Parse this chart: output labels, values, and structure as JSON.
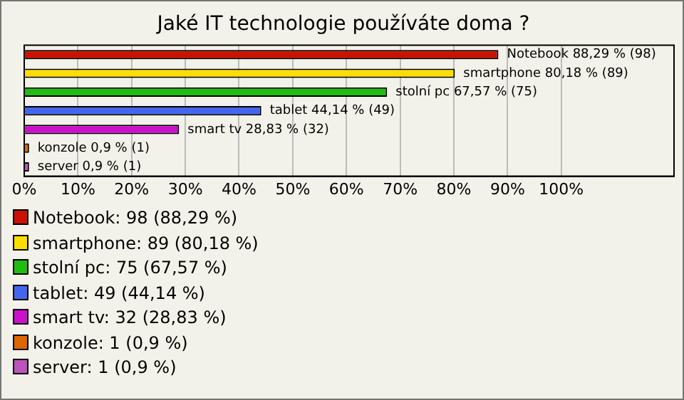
{
  "chart_data": {
    "type": "bar",
    "orientation": "horizontal",
    "stacked": true,
    "title": "Jaké IT technologie používáte doma ?",
    "categories": [
      null,
      null,
      null,
      null,
      null,
      null,
      null
    ],
    "series": [
      {
        "name": "Notebook: 98 (88,29 %)",
        "color": "#cc1100",
        "values": [
          88.29,
          null,
          null,
          null,
          null,
          null,
          null
        ],
        "value_labels": [
          "Notebook 88,29 % (98)",
          null,
          null,
          null,
          null,
          null,
          null
        ]
      },
      {
        "name": "smartphone: 89 (80,18 %)",
        "color": "#ffdd00",
        "values": [
          null,
          80.18,
          null,
          null,
          null,
          null,
          null
        ],
        "value_labels": [
          null,
          "smartphone 80,18 % (89)",
          null,
          null,
          null,
          null,
          null
        ]
      },
      {
        "name": "stolní pc: 75 (67,57 %)",
        "color": "#22bb11",
        "values": [
          null,
          null,
          67.57,
          null,
          null,
          null,
          null
        ],
        "value_labels": [
          null,
          null,
          "stolní pc 67,57 % (75)",
          null,
          null,
          null,
          null
        ]
      },
      {
        "name": "tablet: 49 (44,14 %)",
        "color": "#4466ee",
        "values": [
          null,
          null,
          null,
          44.14,
          null,
          null,
          null
        ],
        "value_labels": [
          null,
          null,
          null,
          "tablet 44,14 % (49)",
          null,
          null,
          null
        ]
      },
      {
        "name": "smart tv: 32 (28,83 %)",
        "color": "#cc11cc",
        "values": [
          null,
          null,
          null,
          null,
          28.83,
          null,
          null
        ],
        "value_labels": [
          null,
          null,
          null,
          null,
          "smart tv 28,83 % (32)",
          null,
          null
        ]
      },
      {
        "name": "konzole: 1 (0,9 %)",
        "color": "#dd6600",
        "values": [
          null,
          null,
          null,
          null,
          null,
          0.9,
          null
        ],
        "value_labels": [
          null,
          null,
          null,
          null,
          null,
          "konzole 0,9 % (1)",
          null
        ]
      },
      {
        "name": "server: 1 (0,9 %)",
        "color": "#bb55bb",
        "values": [
          null,
          null,
          null,
          null,
          null,
          null,
          0.9
        ],
        "value_labels": [
          null,
          null,
          null,
          null,
          null,
          null,
          "server 0,9 % (1)"
        ]
      }
    ],
    "xlim": [
      0,
      121
    ],
    "xticks": [
      {
        "value": 0,
        "label": "0%"
      },
      {
        "value": 10,
        "label": "10%"
      },
      {
        "value": 20,
        "label": "20%"
      },
      {
        "value": 30,
        "label": "30%"
      },
      {
        "value": 40,
        "label": "40%"
      },
      {
        "value": 50,
        "label": "50%"
      },
      {
        "value": 60,
        "label": "60%"
      },
      {
        "value": 70,
        "label": "70%"
      },
      {
        "value": 80,
        "label": "80%"
      },
      {
        "value": 90,
        "label": "90%"
      },
      {
        "value": 100,
        "label": "100%"
      }
    ],
    "grid": "x",
    "legend": "bottom",
    "tick_labels": "x"
  }
}
